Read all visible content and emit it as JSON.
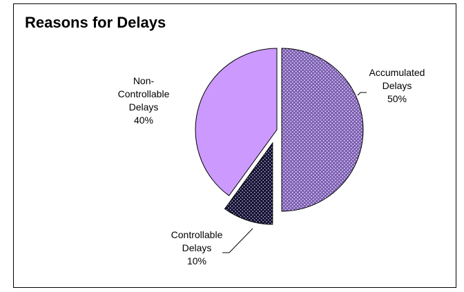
{
  "chart_data": {
    "type": "pie",
    "title": "Reasons for Delays",
    "slices": [
      {
        "name": "Accumulated Delays",
        "value": 50,
        "label_lines": [
          "Accumulated",
          "Delays",
          "50%"
        ],
        "color": "#a183d6",
        "pattern": "dots",
        "exploded": true
      },
      {
        "name": "Controllable Delays",
        "value": 10,
        "label_lines": [
          "Controllable",
          "Delays",
          "10%"
        ],
        "color": "#1e1c3e",
        "pattern": "dots",
        "exploded": true
      },
      {
        "name": "Non-Controllable Delays",
        "value": 40,
        "label_lines": [
          "Non-",
          "Controllable",
          "Delays",
          "40%"
        ],
        "color": "#cc99ff",
        "pattern": "none",
        "exploded": false
      }
    ],
    "legend": "none",
    "start_angle": "12 o'clock, clockwise"
  }
}
